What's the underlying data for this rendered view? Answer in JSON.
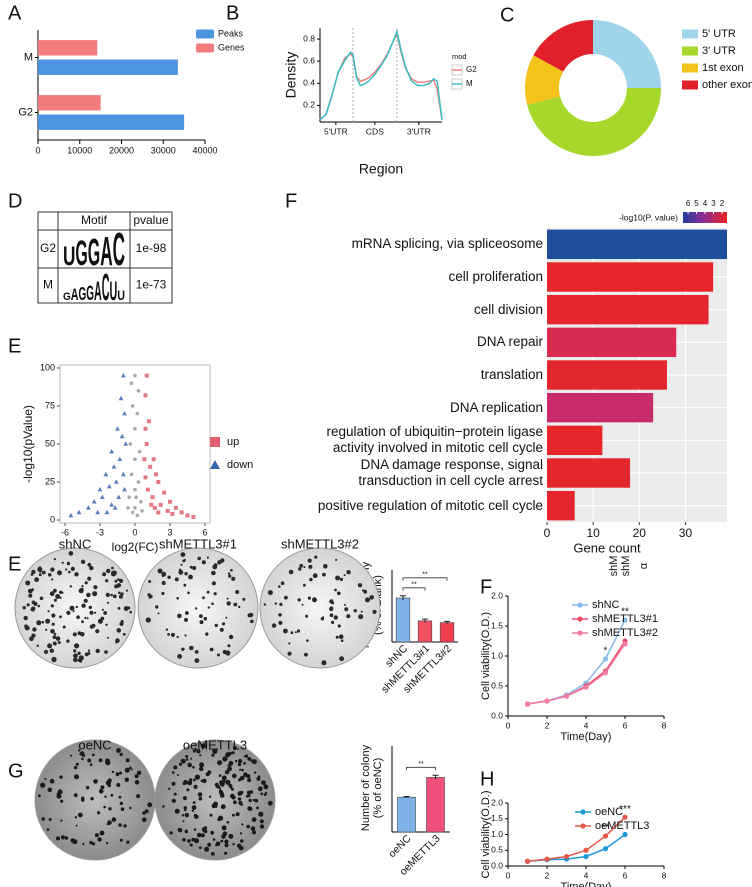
{
  "panel_labels": [
    "A",
    "B",
    "C",
    "D",
    "F",
    "E",
    "E",
    "F",
    "G",
    "H"
  ],
  "motif_table": {
    "header": [
      "Motif",
      "pvalue"
    ],
    "rows": [
      {
        "label": "G2",
        "motif": [
          "U",
          "G",
          "G",
          "A",
          "C"
        ],
        "pvalue": "1e-98"
      },
      {
        "label": "M",
        "motif": [
          "G",
          "A",
          "G",
          "G",
          "A",
          "C",
          "U",
          "U"
        ],
        "pvalue": "1e-73"
      }
    ]
  },
  "colony_images": [
    [
      "shNC",
      "shMETTL3#1",
      "shMETTL3#2"
    ],
    [
      "oeNC",
      "oeMETTL3"
    ]
  ],
  "stray_labels": [
    "shM",
    "shM",
    "α"
  ],
  "chart_data": [
    {
      "type": "barh",
      "categories": [
        "M",
        "G2"
      ],
      "series": [
        {
          "name": "Peaks",
          "color": "#4d94e0",
          "values": [
            33500,
            35000
          ]
        },
        {
          "name": "Genes",
          "color": "#f27c7c",
          "values": [
            14200,
            15000
          ]
        }
      ],
      "xlim": [
        0,
        40000
      ],
      "xticks": [
        0,
        10000,
        20000,
        30000,
        40000
      ]
    },
    {
      "type": "line",
      "xlabel": "Region",
      "ylabel": "Density",
      "legend_title": "mod",
      "x": [
        0,
        5,
        10,
        15,
        20,
        25,
        27,
        30,
        33,
        36,
        40,
        45,
        50,
        55,
        60,
        63,
        66,
        70,
        75,
        80,
        85,
        90,
        93,
        96,
        100
      ],
      "series": [
        {
          "name": "G2",
          "color": "#f08080",
          "values": [
            0.07,
            0.12,
            0.3,
            0.5,
            0.62,
            0.67,
            0.64,
            0.46,
            0.42,
            0.43,
            0.45,
            0.5,
            0.57,
            0.66,
            0.78,
            0.85,
            0.7,
            0.54,
            0.44,
            0.41,
            0.41,
            0.42,
            0.43,
            0.35,
            0.07
          ]
        },
        {
          "name": "M",
          "color": "#3cbcc4",
          "values": [
            0.07,
            0.12,
            0.3,
            0.5,
            0.6,
            0.68,
            0.66,
            0.45,
            0.38,
            0.39,
            0.42,
            0.48,
            0.56,
            0.65,
            0.78,
            0.87,
            0.72,
            0.55,
            0.42,
            0.38,
            0.38,
            0.4,
            0.44,
            0.42,
            0.07
          ]
        }
      ],
      "boundaries": [
        27,
        63
      ],
      "xlim": [
        0,
        100
      ],
      "xticks": [
        {
          "value": 13,
          "label": "5'UTR"
        },
        {
          "value": 45,
          "label": "CDS"
        },
        {
          "value": 81,
          "label": "3'UTR"
        }
      ],
      "ylim": [
        0.05,
        0.9
      ],
      "yticks": [
        0.2,
        0.4,
        0.6,
        0.8
      ]
    },
    {
      "type": "donut",
      "categories": [
        "5' UTR",
        "3' UTR",
        "1st exon",
        "other exon"
      ],
      "values": [
        25,
        46,
        12,
        17
      ],
      "colors": [
        "#9fd4ea",
        "#a6d82c",
        "#f5c21a",
        "#e0202a"
      ]
    },
    {
      "type": "scatter",
      "xlabel": "log2(FC)",
      "ylabel": "-log10(pValue)",
      "series": [
        {
          "name": "up",
          "color": "#e06070",
          "marker": "square",
          "x": [
            1.0,
            0.9,
            1.2,
            1.0,
            1.6,
            1.3,
            2.0,
            1.8,
            2.5,
            3.0,
            2.2,
            3.5,
            4.0,
            1.1,
            2.8,
            0.9,
            1.5,
            4.5,
            3.2,
            2.0,
            0.8,
            1.4,
            5.0,
            1.7,
            0.9
          ],
          "values": [
            95,
            82,
            65,
            50,
            40,
            35,
            25,
            30,
            18,
            12,
            10,
            8,
            5,
            20,
            6,
            28,
            15,
            3,
            4,
            5,
            40,
            10,
            2,
            8,
            60
          ]
        },
        {
          "name": "down",
          "color": "#3a66b0",
          "marker": "triangle",
          "x": [
            -1.0,
            -1.2,
            -0.9,
            -1.5,
            -1.1,
            -2.0,
            -1.3,
            -2.5,
            -1.8,
            -3.0,
            -2.2,
            -3.5,
            -4.0,
            -1.6,
            -2.8,
            -1.0,
            -0.8,
            -4.8,
            -3.2,
            -2.0,
            -1.4,
            -0.9,
            -2.4,
            -1.7,
            -5.5
          ],
          "values": [
            95,
            80,
            70,
            60,
            55,
            45,
            40,
            30,
            35,
            20,
            22,
            12,
            8,
            25,
            15,
            30,
            50,
            5,
            5,
            10,
            15,
            20,
            5,
            8,
            3
          ]
        },
        {
          "color": "#9a9a9a",
          "marker": "circle",
          "x": [
            0,
            -0.3,
            0.3,
            -0.2,
            0.2,
            0,
            -0.4,
            0.4,
            0,
            -0.3,
            0.3,
            0,
            -0.5,
            0.5,
            0,
            -0.2,
            0.2,
            0.6,
            -0.6,
            0.1
          ],
          "values": [
            95,
            90,
            85,
            75,
            70,
            60,
            50,
            45,
            40,
            30,
            25,
            20,
            15,
            12,
            8,
            5,
            3,
            6,
            8,
            15
          ]
        }
      ],
      "xlim": [
        -6,
        6
      ],
      "xticks": [
        -6,
        -3,
        0,
        3,
        6
      ],
      "ylim": [
        0,
        100
      ],
      "yticks": [
        0,
        25,
        50,
        75,
        100
      ]
    },
    {
      "type": "barh",
      "xlabel": "Gene count",
      "categories": [
        "mRNA splicing, via spliceosome",
        "cell proliferation",
        "cell division",
        "DNA repair",
        "translation",
        "DNA replication",
        "regulation of ubiquitin−protein ligase\nactivity involved in mitotic cell cycle",
        "DNA damage response, signal\ntransduction in cell cycle arrest",
        "positive regulation of mitotic cell cycle"
      ],
      "values": [
        39,
        36,
        35,
        28,
        26,
        23,
        12,
        18,
        6
      ],
      "colors": [
        "#1f4e9f",
        "#e6262b",
        "#e5262e",
        "#da2a50",
        "#e3272f",
        "#c92a6c",
        "#e5262c",
        "#e4262d",
        "#e5262c"
      ],
      "xlim": [
        0,
        39
      ],
      "xticks": [
        0,
        10,
        20,
        30
      ],
      "colorbar": {
        "title": "-log10(P. value)",
        "ticks": [
          6,
          5,
          4,
          3,
          2
        ],
        "lim": [
          6.6,
          1.4
        ]
      }
    },
    {
      "type": "bar",
      "ylabel": [
        "Number of colony",
        "(% of Blank)"
      ],
      "categories": [
        "shNC",
        "shMETTL3#1",
        "shMETTL3#2"
      ],
      "values": [
        100,
        48,
        44
      ],
      "errors": [
        5,
        4,
        3
      ],
      "colors": [
        "#7fb2e8",
        "#f05060",
        "#f04050"
      ],
      "ylim": [
        0,
        150
      ],
      "annotations": [
        "**",
        "**"
      ]
    },
    {
      "type": "line",
      "xlabel": "Time(Day)",
      "ylabel": "Cell viability(O.D.)",
      "x": [
        1,
        2,
        3,
        4,
        5,
        6
      ],
      "series": [
        {
          "name": "shNC",
          "color": "#8ab8ea",
          "values": [
            0.2,
            0.25,
            0.35,
            0.55,
            0.95,
            1.6
          ]
        },
        {
          "name": "shMETTL3#1",
          "color": "#e8506a",
          "values": [
            0.2,
            0.25,
            0.33,
            0.5,
            0.75,
            1.25
          ]
        },
        {
          "name": "shMETTL3#2",
          "color": "#f27ca8",
          "values": [
            0.2,
            0.25,
            0.33,
            0.48,
            0.72,
            1.2
          ]
        }
      ],
      "annotations": [
        {
          "x": 5,
          "label": "*"
        },
        {
          "x": 6,
          "label": "**"
        }
      ],
      "xlim": [
        0,
        8
      ],
      "xticks": [
        0,
        2,
        4,
        6,
        8
      ],
      "ylim": [
        0,
        2
      ],
      "yticks": [
        {
          "value": 0,
          "label": "0.0"
        },
        0.5,
        {
          "value": 1,
          "label": "1.0"
        },
        1.5,
        {
          "value": 2,
          "label": "2.0"
        }
      ]
    },
    {
      "type": "bar",
      "ylabel": [
        "Number of colony",
        "(% of oeNC)"
      ],
      "categories": [
        "oeNC",
        "oeMETTL3"
      ],
      "values": [
        100,
        157
      ],
      "errors": [
        2,
        6
      ],
      "colors": [
        "#7fb2e8",
        "#f0507a"
      ],
      "ylim": [
        0,
        230
      ],
      "annotations": [
        "**"
      ]
    },
    {
      "type": "line",
      "xlabel": "Time(Day)",
      "ylabel": "Cell viability(O.D.)",
      "x": [
        1,
        2,
        3,
        4,
        5,
        6
      ],
      "series": [
        {
          "name": "oeNC",
          "color": "#1a9ad6",
          "values": [
            0.15,
            0.2,
            0.22,
            0.3,
            0.55,
            1.0
          ]
        },
        {
          "name": "oeMETTL3",
          "color": "#e45a4a",
          "values": [
            0.15,
            0.22,
            0.3,
            0.5,
            0.95,
            1.55
          ]
        }
      ],
      "annotations": [
        {
          "x": 5,
          "label": "**"
        },
        {
          "x": 6,
          "label": "***"
        }
      ],
      "xlim": [
        0,
        8
      ],
      "xticks": [
        0,
        2,
        4,
        6,
        8
      ],
      "ylim": [
        0,
        2
      ],
      "yticks": [
        {
          "value": 0,
          "label": "0.0"
        },
        0.5,
        {
          "value": 1,
          "label": "1.0"
        },
        1.5,
        {
          "value": 2,
          "label": "2.0"
        }
      ]
    }
  ]
}
